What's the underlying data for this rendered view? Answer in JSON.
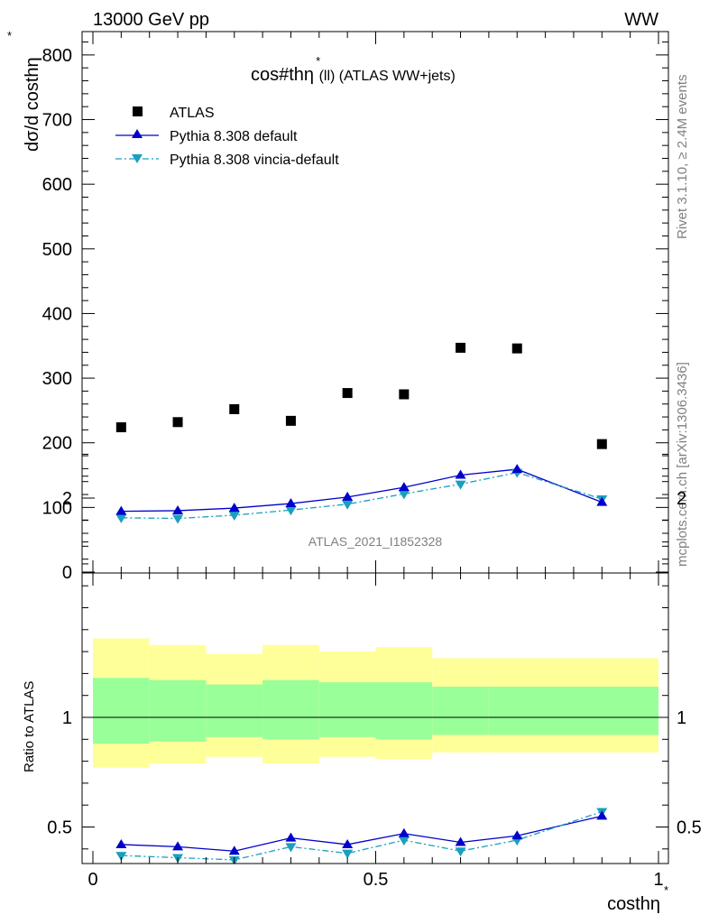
{
  "header": {
    "energy": "13000 GeV pp",
    "process": "WW"
  },
  "side": {
    "rivet": "Rivet 3.1.10, ≥ 2.4M events",
    "mcplots": "mcplots.cern.ch [arXiv:1306.3436]"
  },
  "colors": {
    "atlas": "#000000",
    "pythia_default": "#0000cc",
    "pythia_vincia": "#1a9fbf",
    "band_inner": "#99ff99",
    "band_outer": "#ffff99"
  },
  "chart_data": [
    {
      "type": "scatter",
      "title": "cos#thη* (ll) (ATLAS WW+jets)",
      "title_main": "cos#thη",
      "title_sup": "*",
      "title_sub": " (ll) (ATLAS WW+jets)",
      "ylabel": "dσ/d costhη",
      "ylabel_sup": "*",
      "xlabel": "costhη",
      "xlabel_sup": "*",
      "analysis_label": "ATLAS_2021_I1852328",
      "xlim": [
        0,
        1
      ],
      "ylim": [
        0,
        840
      ],
      "y_ticks": [
        0,
        100,
        200,
        300,
        400,
        500,
        600,
        700,
        800
      ],
      "x_bins": [
        [
          0,
          0.1
        ],
        [
          0.1,
          0.2
        ],
        [
          0.2,
          0.3
        ],
        [
          0.3,
          0.4
        ],
        [
          0.4,
          0.5
        ],
        [
          0.5,
          0.6
        ],
        [
          0.6,
          0.7
        ],
        [
          0.7,
          0.8
        ],
        [
          0.8,
          1.0
        ]
      ],
      "x": [
        0.05,
        0.15,
        0.25,
        0.35,
        0.45,
        0.55,
        0.65,
        0.75,
        0.9
      ],
      "legend_position": "top-left",
      "series": [
        {
          "name": "ATLAS",
          "marker": "square",
          "values": [
            224,
            232,
            252,
            234,
            277,
            275,
            347,
            346,
            198
          ]
        },
        {
          "name": "Pythia 8.308 default",
          "marker": "triangle-up",
          "line": "solid",
          "values": [
            94,
            95,
            99,
            106,
            116,
            131,
            150,
            159,
            108
          ]
        },
        {
          "name": "Pythia 8.308 vincia-default",
          "marker": "triangle-down",
          "line": "dashdot",
          "values": [
            84,
            83,
            88,
            96,
            105,
            121,
            136,
            154,
            113
          ]
        }
      ]
    },
    {
      "type": "line",
      "ylabel": "Ratio to ATLAS",
      "xlim": [
        0,
        1
      ],
      "ylim": [
        0.35,
        2.3
      ],
      "y_ticks": [
        0.5,
        1,
        2
      ],
      "x_ticks": [
        0,
        0.5,
        1
      ],
      "x_tick_labels": [
        "0",
        "0.5",
        "1"
      ],
      "x_bins": [
        [
          0,
          0.1
        ],
        [
          0.1,
          0.2
        ],
        [
          0.2,
          0.3
        ],
        [
          0.3,
          0.4
        ],
        [
          0.4,
          0.5
        ],
        [
          0.5,
          0.6
        ],
        [
          0.6,
          0.7
        ],
        [
          0.7,
          0.8
        ],
        [
          0.8,
          1.0
        ]
      ],
      "band_inner": [
        [
          0.88,
          1.18
        ],
        [
          0.89,
          1.17
        ],
        [
          0.91,
          1.15
        ],
        [
          0.9,
          1.17
        ],
        [
          0.91,
          1.16
        ],
        [
          0.9,
          1.16
        ],
        [
          0.92,
          1.14
        ],
        [
          0.92,
          1.14
        ],
        [
          0.92,
          1.14
        ]
      ],
      "band_outer": [
        [
          0.77,
          1.36
        ],
        [
          0.79,
          1.33
        ],
        [
          0.82,
          1.29
        ],
        [
          0.79,
          1.33
        ],
        [
          0.82,
          1.3
        ],
        [
          0.81,
          1.32
        ],
        [
          0.84,
          1.27
        ],
        [
          0.84,
          1.27
        ],
        [
          0.84,
          1.27
        ]
      ],
      "x": [
        0.05,
        0.15,
        0.25,
        0.35,
        0.45,
        0.55,
        0.65,
        0.75,
        0.9
      ],
      "series": [
        {
          "name": "Pythia 8.308 default",
          "marker": "triangle-up",
          "line": "solid",
          "values": [
            0.42,
            0.41,
            0.39,
            0.45,
            0.42,
            0.47,
            0.43,
            0.46,
            0.55
          ]
        },
        {
          "name": "Pythia 8.308 vincia-default",
          "marker": "triangle-down",
          "line": "dashdot",
          "values": [
            0.37,
            0.36,
            0.35,
            0.41,
            0.38,
            0.44,
            0.39,
            0.44,
            0.57
          ]
        }
      ]
    }
  ]
}
